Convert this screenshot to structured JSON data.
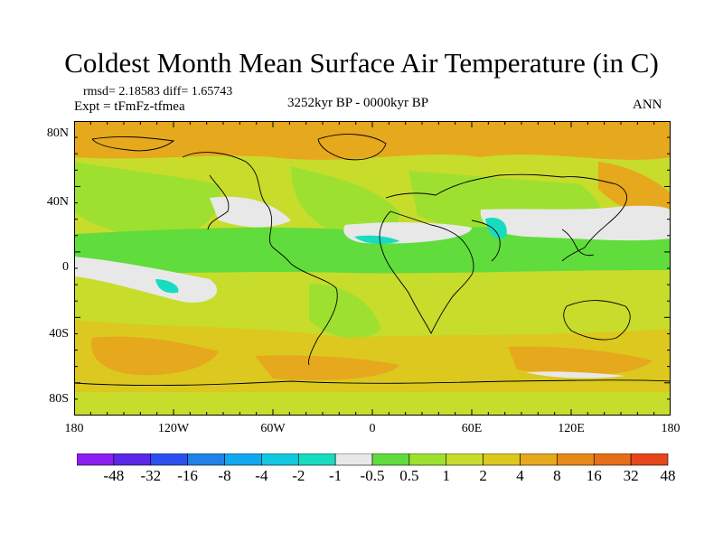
{
  "title": "Coldest Month Mean Surface Air Temperature (in C)",
  "stats": "rmsd= 2.18583 diff= 1.65743",
  "experiment": "Expt = tFmFz-tfmea",
  "period": "3252kyr BP - 0000kyr BP",
  "season": "ANN",
  "lat_ticks": [
    "80N",
    "40N",
    "0",
    "40S",
    "80S"
  ],
  "lon_ticks": [
    "180",
    "120W",
    "60W",
    "0",
    "60E",
    "120E",
    "180"
  ],
  "colorbar": {
    "labels": [
      "-48",
      "-32",
      "-16",
      "-8",
      "-4",
      "-2",
      "-1",
      "-0.5",
      "0.5",
      "1",
      "2",
      "4",
      "8",
      "16",
      "32",
      "48"
    ],
    "colors": [
      "#8a1ef0",
      "#5a28e6",
      "#2c50f0",
      "#1e82e6",
      "#10a8f0",
      "#12c8e0",
      "#18dcc0",
      "#e8e8e8",
      "#60dc3c",
      "#9ee030",
      "#c8dc2c",
      "#dcc81e",
      "#e6a81c",
      "#e68a1a",
      "#e66e18",
      "#e6461a"
    ]
  },
  "map_colors": {
    "green": "#9ee030",
    "yellow_green": "#c8dc2c",
    "yellow": "#dcc81e",
    "orange": "#e6a81c",
    "light_green": "#60dc3c",
    "gray": "#e8e8e8",
    "cyan": "#18dcc0",
    "coast": "#000000"
  }
}
